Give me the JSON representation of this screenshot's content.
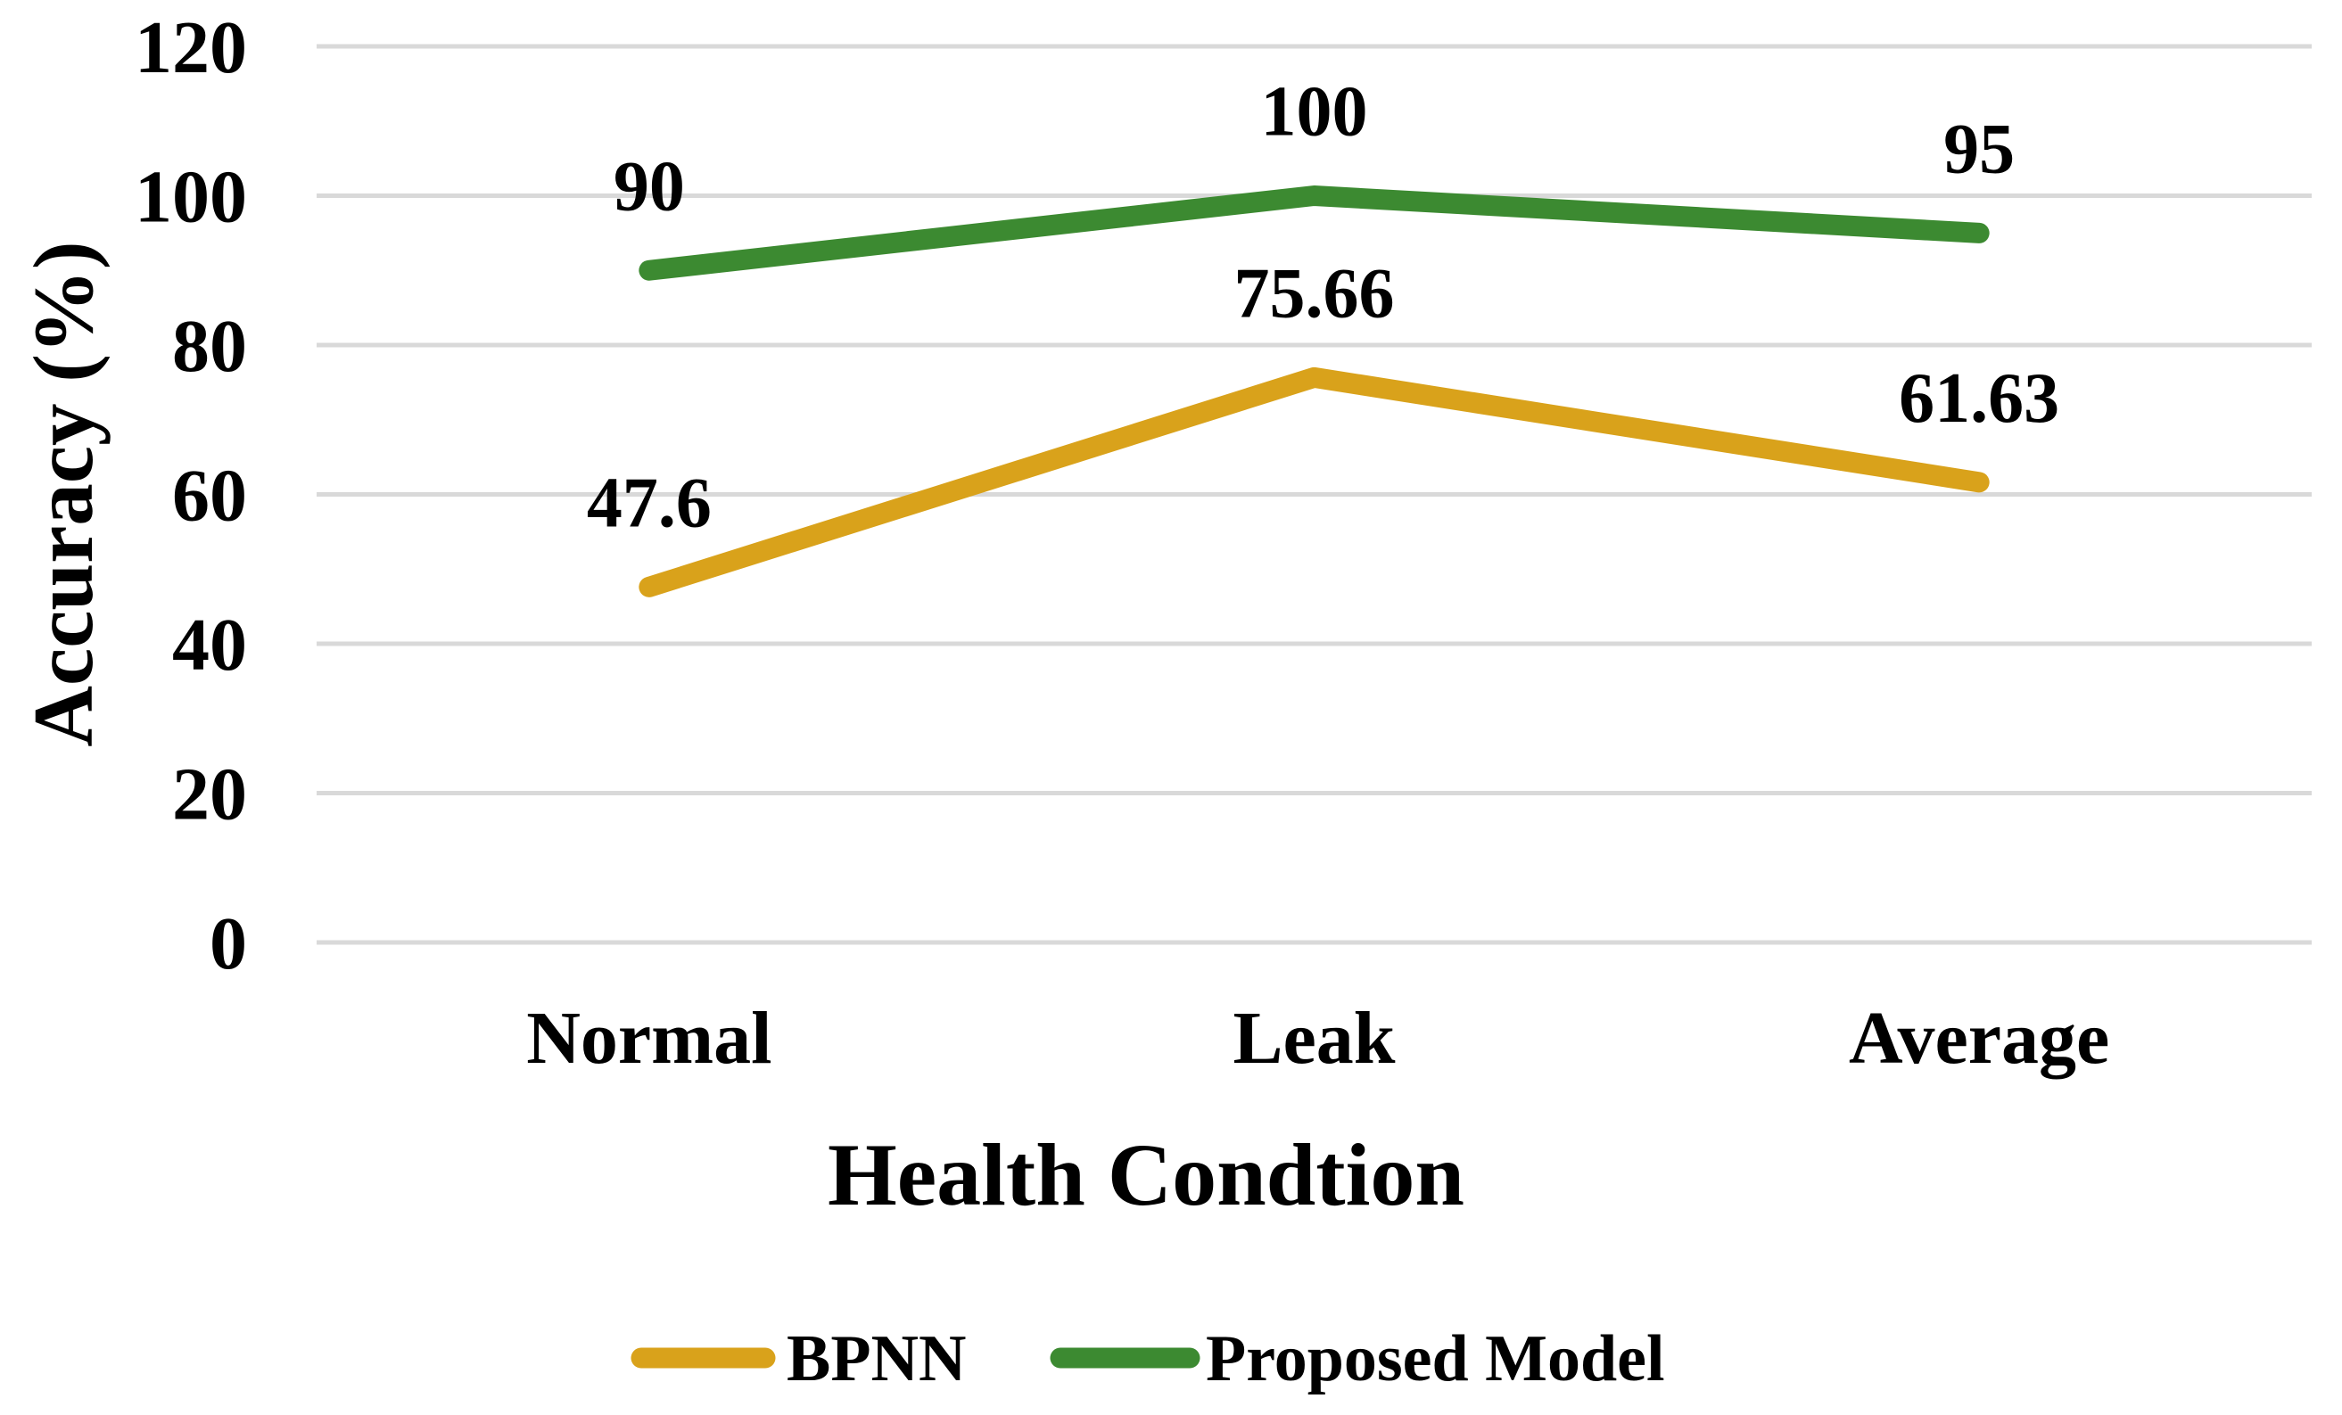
{
  "figure": {
    "background_color": "#FFFFFF",
    "text_color": "#000000"
  },
  "chart_data": {
    "type": "line",
    "title": "",
    "categories": [
      "Normal",
      "Leak",
      "Average"
    ],
    "series": [
      {
        "name": "BPNN",
        "color": "#D9A21B",
        "values": [
          47.6,
          75.66,
          61.63
        ],
        "labels": [
          "47.6",
          "75.66",
          "61.63"
        ]
      },
      {
        "name": "Proposed Model",
        "color": "#3C8A31",
        "values": [
          90,
          100,
          95
        ],
        "labels": [
          "90",
          "100",
          "95"
        ]
      }
    ],
    "xlabel": "Health Condtion",
    "ylabel": "Accuracy (%)",
    "ylim": [
      0,
      120
    ],
    "y_ticks": [
      0,
      20,
      40,
      60,
      80,
      100,
      120
    ],
    "y_tick_labels": [
      "0",
      "20",
      "40",
      "60",
      "80",
      "100",
      "120"
    ],
    "grid": "horizontal",
    "gridline_color": "#D9D9D9",
    "legend_position": "bottom",
    "legend_entries": [
      "BPNN",
      "Proposed Model"
    ]
  }
}
